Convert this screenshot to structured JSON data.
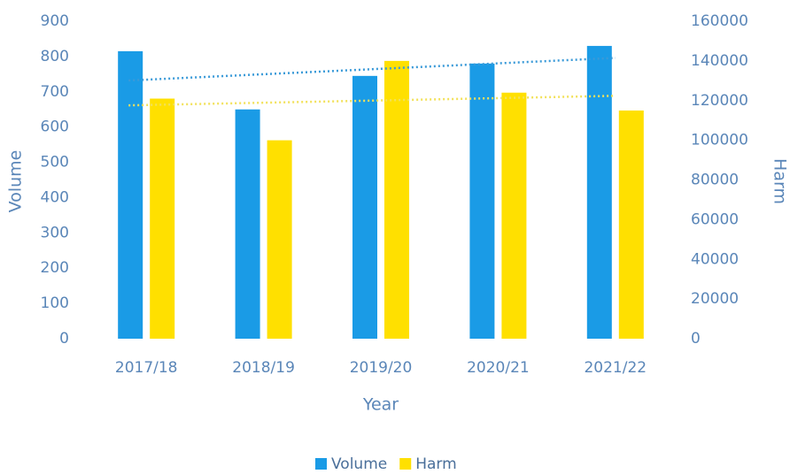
{
  "chart_data": {
    "type": "bar",
    "x_label": "Year",
    "y_label": "Volume",
    "y2_label": "Harm",
    "categories": [
      "2017/18",
      "2018/19",
      "2019/20",
      "2020/21",
      "2021/22"
    ],
    "series": [
      {
        "name": "Volume",
        "color": "#1a9be6",
        "values": [
          815,
          650,
          745,
          780,
          830
        ]
      },
      {
        "name": "Harm",
        "color": "#ffe000",
        "axis": "y2",
        "values": [
          121000,
          100000,
          140000,
          124000,
          115000
        ]
      }
    ],
    "ylim": [
      0,
      900
    ],
    "yticks": [
      0,
      100,
      200,
      300,
      400,
      500,
      600,
      700,
      800,
      900
    ],
    "y2lim": [
      0,
      160000
    ],
    "y2ticks": [
      0,
      20000,
      40000,
      60000,
      80000,
      100000,
      120000,
      140000,
      160000
    ],
    "trendline": true,
    "legend": "bottom"
  }
}
